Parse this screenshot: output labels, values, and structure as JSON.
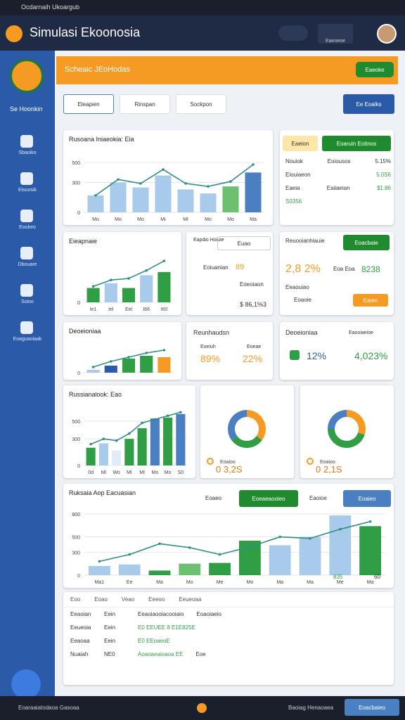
{
  "status_bar": {
    "title": "Ocdarnaih Ukoargub"
  },
  "app_bar": {
    "title": "Simulasi Ekoonosia",
    "button": "Eaeoeoe"
  },
  "sidebar": {
    "brand": "Se Hoonkin",
    "items": [
      "Sbaoiko",
      "Eisuosik",
      "Eoukeo",
      "Dbouare",
      "Soioo",
      "Eoaguaoiaak"
    ]
  },
  "header": {
    "title": "Scheaic JEoHodas",
    "button": "Eaeoke"
  },
  "tabs": {
    "items": [
      "Eleapien",
      "Rinspan",
      "Sockpon"
    ],
    "button": "Ee Eoalks"
  },
  "charts": [
    {
      "title": "Rusoana Iniaeokia: Eia",
      "categories": [
        "Mo",
        "Mo",
        "Mo",
        "Mi",
        "Ml",
        "Mo",
        "Mo",
        "Ma"
      ],
      "bars": [
        170,
        300,
        250,
        370,
        230,
        190,
        260,
        400
      ],
      "bar_colors": [
        "#a9cbeb",
        "#a9cbeb",
        "#a9cbeb",
        "#a9cbeb",
        "#a9cbeb",
        "#a9cbeb",
        "#6cc070",
        "#4a7fc1"
      ],
      "line": [
        170,
        330,
        290,
        430,
        290,
        260,
        310,
        480
      ],
      "ylim": [
        0,
        600
      ],
      "yticks": [
        0,
        300,
        500
      ]
    },
    {
      "title": "Eieapnaie",
      "categories": [
        "Ie1",
        "Iel",
        "Eel",
        "I66",
        "I60"
      ],
      "bars": [
        45,
        60,
        45,
        85,
        95
      ],
      "bar_colors": [
        "#2f9e44",
        "#a9cbeb",
        "#2f9e44",
        "#a9cbeb",
        "#2f9e44"
      ],
      "line": [
        50,
        70,
        75,
        100,
        130
      ],
      "ylim": [
        0,
        150
      ],
      "yticks": [
        0
      ]
    },
    {
      "title": "Deoeioniaa",
      "bars": [
        10,
        25,
        50,
        60,
        55
      ],
      "bar_colors": [
        "#a9cbeb",
        "#2a5aa8",
        "#2f9e44",
        "#2f9e44",
        "#f59b23"
      ],
      "line": [
        20,
        40,
        55,
        70,
        80
      ],
      "ylim": [
        0,
        100
      ],
      "yticks": [
        0
      ]
    },
    {
      "title": "Russianalook: Eao",
      "categories": [
        "0d",
        "Ml",
        "Wo",
        "Ml",
        "Ml",
        "Mo",
        "Mo",
        "S0"
      ],
      "bars": [
        200,
        250,
        170,
        300,
        420,
        530,
        540,
        580
      ],
      "bar_colors": [
        "#2f9e44",
        "#a9cbeb",
        "#e2ecf7",
        "#2f9e44",
        "#2f9e44",
        "#4a7fc1",
        "#2f9e44",
        "#4a7fc1"
      ],
      "line": [
        240,
        300,
        280,
        360,
        480,
        520,
        560,
        600
      ],
      "ylim": [
        0,
        650
      ],
      "yticks": [
        0,
        300,
        500
      ]
    },
    {
      "title": "Ruksaia Aop Eacuasian",
      "categories": [
        "Ma1",
        "Ee",
        "Ma",
        "Mo",
        "Me",
        "Mo",
        "Ma",
        "Ma",
        "Me",
        "Ma"
      ],
      "bars": [
        120,
        140,
        60,
        150,
        160,
        450,
        390,
        500,
        780,
        640
      ],
      "bar_colors": [
        "#a9cbeb",
        "#a9cbeb",
        "#2f9e44",
        "#6cc070",
        "#2f9e44",
        "#2f9e44",
        "#a9cbeb",
        "#a9cbeb",
        "#a9cbeb",
        "#2f9e44"
      ],
      "line": [
        180,
        270,
        410,
        360,
        270,
        370,
        500,
        480,
        600,
        700
      ],
      "ylim": [
        0,
        900
      ],
      "yticks": [
        0,
        300,
        500,
        800
      ]
    }
  ],
  "donuts": [
    {
      "label": "0 3,2S",
      "legend": "Eoaioo",
      "values": [
        35,
        30,
        35
      ],
      "colors": [
        "#f59b23",
        "#2f9e44",
        "#4a7fc1"
      ]
    },
    {
      "label": "0 2,1S",
      "legend": "Eoaioo",
      "values": [
        30,
        45,
        25
      ],
      "colors": [
        "#f59b23",
        "#2f9e44",
        "#4a7fc1"
      ]
    }
  ],
  "stats": {
    "a": {
      "tag": "Eaeion",
      "button": "Eoaruin Eoitnos",
      "rows": [
        [
          "Nouiok",
          "Eoiousos",
          "5.15%"
        ],
        [
          "Eiouiaeon",
          "5.0S6"
        ],
        [
          "Eaeia",
          "Eaiiaeian",
          "$1.86"
        ],
        [
          "S0356"
        ]
      ]
    },
    "b": {
      "title": "Eapdio Hoiuie",
      "select": "Euao",
      "items": [
        "Eoiuanian",
        "89",
        "Eoeoiaon",
        "$ 86,1%3"
      ]
    },
    "c": {
      "title": "Reuooianhiauie",
      "button": "Eoacbaie",
      "big": "2,8 2%",
      "mid": "Eoa Eoa",
      "value": "8238",
      "sub": "Eeaouiao",
      "item": "Eoaoie",
      "button2": "Eaieo"
    },
    "d": {
      "title": "Reunhaudsn",
      "labels": [
        "Eoeiuh",
        "Eoeae"
      ],
      "values": [
        "89%",
        "22%"
      ]
    },
    "e": {
      "title": "Deoeioniaa",
      "sub": "Eaooiaeioe",
      "values": [
        "12%",
        "4,023%"
      ]
    }
  },
  "big_chart_controls": {
    "label": "Eoaeo",
    "green": "Eoeaeaooieo",
    "label2": "Eaoioe",
    "blue": "Eoaieo",
    "values": [
      "835",
      "60"
    ]
  },
  "table": {
    "header": [
      "Eoo",
      "Eoao",
      "Veao",
      "Eeeoo",
      "Eeueoaa"
    ],
    "rows": [
      [
        "Eeaoian",
        "Eein",
        "Eeaoiaooiacooiaio",
        "Eoaoiaeio"
      ],
      [
        "Eeueoia",
        "Eein",
        "E0 EEUEE 8 E1E825E"
      ],
      [
        "Eeaoaa",
        "Eein",
        "E0 EEoaeoE"
      ],
      [
        "Nuaiah",
        "NE0",
        "Aoaoaeaioaoa EE",
        "Eoe"
      ]
    ]
  },
  "footer": {
    "left": "Eoaraaiatodaoa Gasoaa",
    "right": "Baoiag Henaoaea",
    "button": "Eoacbaieo"
  }
}
